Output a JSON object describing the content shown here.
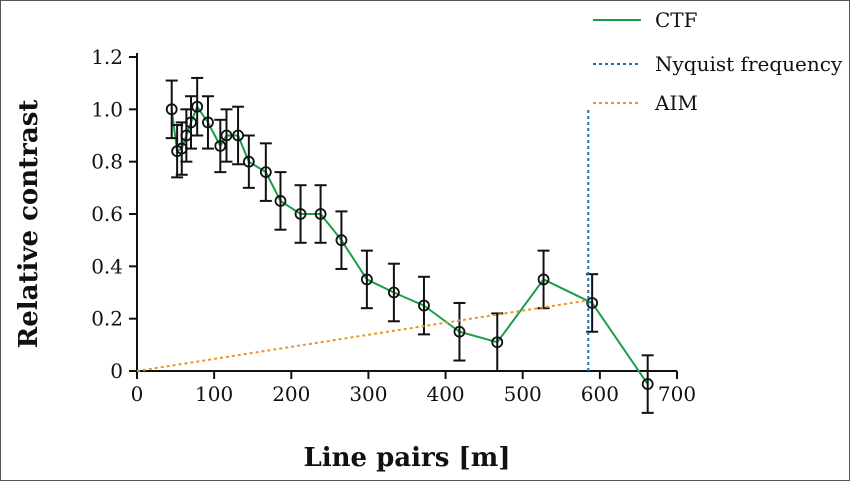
{
  "chart_data": {
    "type": "line",
    "xlabel": "Line pairs [m]",
    "ylabel": "Relative contrast",
    "xlim": [
      0,
      700
    ],
    "ylim": [
      0,
      1.2
    ],
    "xticks": [
      "0",
      "100",
      "200",
      "300",
      "400",
      "500",
      "600",
      "700"
    ],
    "yticks": [
      "0",
      "0.2",
      "0.4",
      "0.6",
      "0.8",
      "1.0",
      "1.2"
    ],
    "grid": false,
    "legend_position": "top-right",
    "series": [
      {
        "name": "CTF",
        "color": "#1a9e4a",
        "style": "solid",
        "marker": "open-circle",
        "x": [
          45,
          52,
          58,
          64,
          70,
          78,
          92,
          108,
          116,
          131,
          145,
          167,
          186,
          212,
          238,
          265,
          298,
          333,
          372,
          418,
          467,
          527,
          590,
          662
        ],
        "y": [
          1.0,
          0.84,
          0.85,
          0.9,
          0.95,
          1.01,
          0.95,
          0.86,
          0.9,
          0.9,
          0.8,
          0.76,
          0.65,
          0.6,
          0.6,
          0.5,
          0.35,
          0.3,
          0.25,
          0.15,
          0.11,
          0.35,
          0.26,
          -0.05
        ],
        "error": [
          0.11,
          0.1,
          0.1,
          0.1,
          0.1,
          0.11,
          0.1,
          0.1,
          0.1,
          0.11,
          0.1,
          0.11,
          0.11,
          0.11,
          0.11,
          0.11,
          0.11,
          0.11,
          0.11,
          0.11,
          0.11,
          0.11,
          0.11,
          0.11
        ]
      },
      {
        "name": "Nyquist frequency",
        "color": "#1f6fb5",
        "style": "dotted",
        "x": [
          585,
          585
        ],
        "y": [
          0,
          1.0
        ]
      },
      {
        "name": "AIM",
        "color": "#e8962a",
        "style": "dotted",
        "x": [
          0,
          585
        ],
        "y": [
          0,
          0.27
        ]
      }
    ]
  }
}
